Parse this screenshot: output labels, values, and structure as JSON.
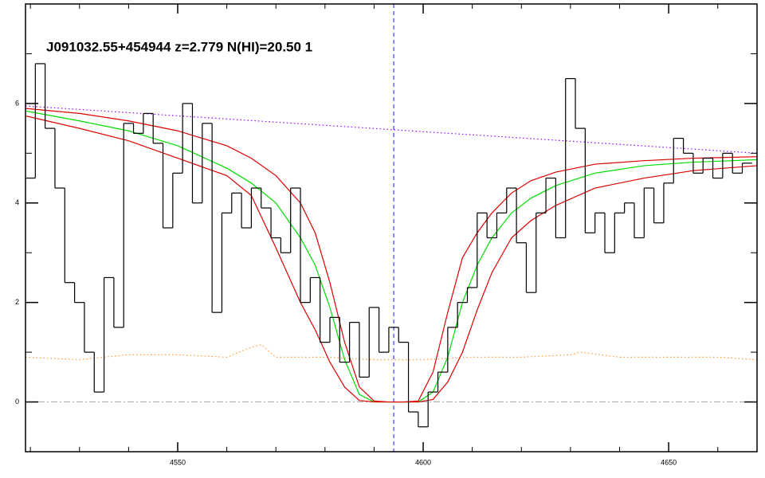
{
  "chart_data": {
    "type": "spectrum",
    "title": "J091032.55+454944 z=2.779 N(HI)=20.50 1",
    "xlim": [
      4519,
      4668
    ],
    "ylim": [
      -1,
      8
    ],
    "xticks": [
      4550,
      4600,
      4650
    ],
    "yticks": [
      0,
      2,
      4,
      6
    ],
    "xticks_minor": [
      4520,
      4530,
      4540,
      4560,
      4570,
      4580,
      4590,
      4610,
      4620,
      4630,
      4640,
      4660
    ],
    "yticks_minor": [
      -1,
      1,
      3,
      5,
      7
    ],
    "vline": 4594,
    "vline_color": "#1a1aff",
    "hline": 0,
    "hline_color": "#aaaaaa",
    "flux": {
      "color": "#000000",
      "bins": [
        4519,
        4521,
        4523,
        4525,
        4527,
        4529,
        4531,
        4533,
        4535,
        4537,
        4539,
        4541,
        4543,
        4545,
        4547,
        4549,
        4551,
        4553,
        4555,
        4557,
        4559,
        4561,
        4563,
        4565,
        4567,
        4569,
        4571,
        4573,
        4575,
        4577,
        4579,
        4581,
        4583,
        4585,
        4587,
        4589,
        4591,
        4593,
        4595,
        4597,
        4599,
        4601,
        4603,
        4605,
        4607,
        4609,
        4611,
        4613,
        4615,
        4617,
        4619,
        4621,
        4623,
        4625,
        4627,
        4629,
        4631,
        4633,
        4635,
        4637,
        4639,
        4641,
        4643,
        4645,
        4647,
        4649,
        4651,
        4653,
        4655,
        4657,
        4659,
        4661,
        4663,
        4665,
        4667
      ],
      "values": [
        4.5,
        6.8,
        5.5,
        4.3,
        2.4,
        2.0,
        1.0,
        0.2,
        2.5,
        1.5,
        5.6,
        5.4,
        5.8,
        5.2,
        3.5,
        4.6,
        6.0,
        4.0,
        5.6,
        1.8,
        3.8,
        4.2,
        3.5,
        4.3,
        3.9,
        3.3,
        3.0,
        4.3,
        2.0,
        2.5,
        1.2,
        1.7,
        0.8,
        1.6,
        0.5,
        1.9,
        1.0,
        1.5,
        1.2,
        -0.2,
        -0.5,
        0.2,
        0.6,
        1.5,
        2.0,
        2.3,
        3.8,
        3.3,
        3.8,
        4.3,
        3.2,
        2.2,
        3.8,
        4.5,
        3.3,
        6.5,
        5.5,
        3.4,
        3.8,
        3.0,
        3.8,
        4.0,
        3.3,
        4.3,
        3.6,
        4.4,
        5.3,
        5.0,
        4.6,
        4.9,
        4.5,
        5.0,
        4.6,
        4.8
      ]
    },
    "series": [
      {
        "color": "#9900ff",
        "linestyle": "dotted",
        "x": [
          4519,
          4668
        ],
        "values": [
          5.95,
          5.0
        ]
      },
      {
        "color": "#ff9933",
        "linestyle": "dotted",
        "x": [
          4519,
          4530,
          4540,
          4550,
          4560,
          4565,
          4567,
          4570,
          4580,
          4590,
          4600,
          4610,
          4620,
          4630,
          4632,
          4640,
          4650,
          4660,
          4668
        ],
        "values": [
          0.9,
          0.85,
          0.95,
          0.95,
          0.9,
          1.1,
          1.15,
          0.9,
          0.9,
          0.85,
          0.85,
          0.9,
          0.9,
          0.95,
          1.0,
          0.9,
          0.9,
          0.9,
          0.85
        ]
      },
      {
        "color": "#00dd00",
        "linestyle": "solid",
        "x": [
          4519,
          4530,
          4540,
          4550,
          4560,
          4565,
          4570,
          4575,
          4578,
          4581,
          4584,
          4587,
          4590,
          4593,
          4596,
          4599,
          4602,
          4605,
          4608,
          4611,
          4614,
          4618,
          4622,
          4627,
          4635,
          4645,
          4655,
          4668
        ],
        "values": [
          5.85,
          5.65,
          5.45,
          5.15,
          4.7,
          4.4,
          4.0,
          3.3,
          2.75,
          1.9,
          0.85,
          0.15,
          0,
          0,
          0,
          0,
          0.2,
          0.9,
          2.0,
          2.75,
          3.3,
          3.8,
          4.1,
          4.35,
          4.6,
          4.75,
          4.82,
          4.87
        ]
      },
      {
        "color": "#dd0000",
        "linestyle": "solid",
        "x": [
          4519,
          4530,
          4540,
          4550,
          4560,
          4565,
          4570,
          4575,
          4578,
          4581,
          4584,
          4587,
          4590,
          4593,
          4596,
          4599,
          4602,
          4605,
          4608,
          4611,
          4614,
          4618,
          4622,
          4627,
          4635,
          4645,
          4655,
          4668
        ],
        "values": [
          5.9,
          5.8,
          5.65,
          5.45,
          5.15,
          4.9,
          4.55,
          4.0,
          3.4,
          2.4,
          1.2,
          0.3,
          0.02,
          0,
          0,
          0.02,
          0.6,
          1.8,
          2.9,
          3.4,
          3.8,
          4.2,
          4.45,
          4.62,
          4.78,
          4.85,
          4.9,
          4.93
        ]
      },
      {
        "color": "#dd0000",
        "linestyle": "solid",
        "x": [
          4519,
          4530,
          4540,
          4550,
          4560,
          4565,
          4570,
          4575,
          4578,
          4581,
          4584,
          4587,
          4590,
          4593,
          4596,
          4599,
          4602,
          4605,
          4608,
          4611,
          4614,
          4618,
          4622,
          4627,
          4635,
          4645,
          4655,
          4668
        ],
        "values": [
          5.75,
          5.5,
          5.25,
          4.9,
          4.55,
          4.15,
          3.1,
          2.0,
          1.45,
          0.8,
          0.3,
          0.03,
          0,
          0,
          0,
          0,
          0.05,
          0.4,
          1.0,
          1.85,
          2.6,
          3.3,
          3.65,
          3.95,
          4.3,
          4.5,
          4.65,
          4.75
        ]
      }
    ]
  }
}
